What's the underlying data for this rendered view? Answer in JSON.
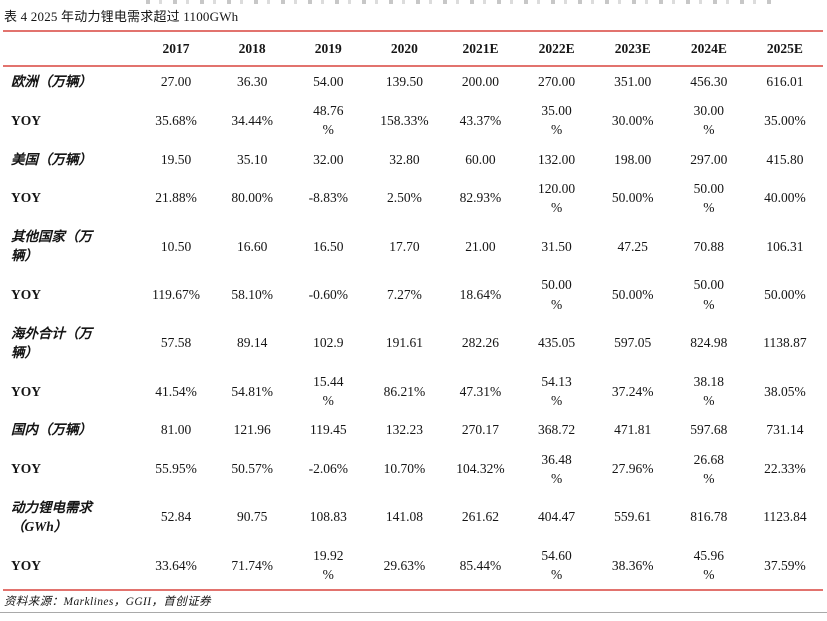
{
  "document": {
    "table_title": "表 4 2025 年动力锂电需求超过 1100GWh",
    "source_note": "资料来源：Marklines，GGII，首创证券"
  },
  "colors": {
    "accent_line": "#e2736e",
    "bottom_rule": "#a9a9a9",
    "text": "#151515"
  },
  "table": {
    "columns": [
      "",
      "2017",
      "2018",
      "2019",
      "2020",
      "2021E",
      "2022E",
      "2023E",
      "2024E",
      "2025E"
    ],
    "rows": [
      {
        "label": "欧洲（万辆）",
        "values": [
          "27.00",
          "36.30",
          "54.00",
          "139.50",
          "200.00",
          "270.00",
          "351.00",
          "456.30",
          "616.01"
        ]
      },
      {
        "label": "YOY",
        "values": [
          "35.68%",
          "34.44%",
          "48.76\n%",
          "158.33%",
          "43.37%",
          "35.00\n%",
          "30.00%",
          "30.00\n%",
          "35.00%"
        ]
      },
      {
        "label": "美国（万辆）",
        "values": [
          "19.50",
          "35.10",
          "32.00",
          "32.80",
          "60.00",
          "132.00",
          "198.00",
          "297.00",
          "415.80"
        ]
      },
      {
        "label": "YOY",
        "values": [
          "21.88%",
          "80.00%",
          "-8.83%",
          "2.50%",
          "82.93%",
          "120.00\n%",
          "50.00%",
          "50.00\n%",
          "40.00%"
        ]
      },
      {
        "label": "其他国家（万\n辆）",
        "values": [
          "10.50",
          "16.60",
          "16.50",
          "17.70",
          "21.00",
          "31.50",
          "47.25",
          "70.88",
          "106.31"
        ]
      },
      {
        "label": "YOY",
        "values": [
          "119.67%",
          "58.10%",
          "-0.60%",
          "7.27%",
          "18.64%",
          "50.00\n%",
          "50.00%",
          "50.00\n%",
          "50.00%"
        ]
      },
      {
        "label": "海外合计（万\n辆）",
        "values": [
          "57.58",
          "89.14",
          "102.9",
          "191.61",
          "282.26",
          "435.05",
          "597.05",
          "824.98",
          "1138.87"
        ]
      },
      {
        "label": "YOY",
        "values": [
          "41.54%",
          "54.81%",
          "15.44\n%",
          "86.21%",
          "47.31%",
          "54.13\n%",
          "37.24%",
          "38.18\n%",
          "38.05%"
        ]
      },
      {
        "label": "国内（万辆）",
        "values": [
          "81.00",
          "121.96",
          "119.45",
          "132.23",
          "270.17",
          "368.72",
          "471.81",
          "597.68",
          "731.14"
        ]
      },
      {
        "label": "YOY",
        "values": [
          "55.95%",
          "50.57%",
          "-2.06%",
          "10.70%",
          "104.32%",
          "36.48\n%",
          "27.96%",
          "26.68\n%",
          "22.33%"
        ]
      },
      {
        "label": "动力锂电需求\n（GWh）",
        "values": [
          "52.84",
          "90.75",
          "108.83",
          "141.08",
          "261.62",
          "404.47",
          "559.61",
          "816.78",
          "1123.84"
        ]
      },
      {
        "label": "YOY",
        "values": [
          "33.64%",
          "71.74%",
          "19.92\n%",
          "29.63%",
          "85.44%",
          "54.60\n%",
          "38.36%",
          "45.96\n%",
          "37.59%"
        ]
      }
    ]
  }
}
